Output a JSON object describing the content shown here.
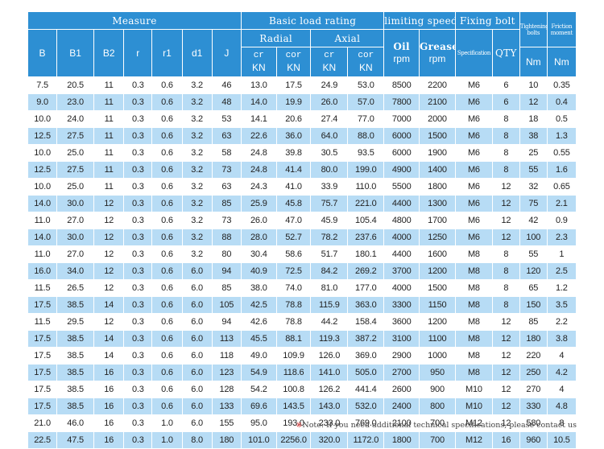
{
  "header": {
    "measure": "Measure",
    "basic_load_rating": "Basic load rating",
    "limiting_speed": "limiting speed",
    "fixing_bolt": "Fixing bolt",
    "tightening_bolts": "Tightening bolts",
    "friction_moment": "Friction moment",
    "radial": "Radial",
    "axial": "Axial",
    "oil": "Oil",
    "grease": "Grease",
    "rpm": "rpm",
    "specification": "Specification",
    "qty": "QTY",
    "nm": "Nm",
    "kn": "KN",
    "cr": "cr",
    "cor": "cor",
    "b": "B",
    "b1": "B1",
    "b2": "B2",
    "r": "r",
    "r1": "r1",
    "d1": "d1",
    "j": "J"
  },
  "rows": [
    [
      "7.5",
      "20.5",
      "11",
      "0.3",
      "0.6",
      "3.2",
      "46",
      "13.0",
      "17.5",
      "24.9",
      "53.0",
      "8500",
      "2200",
      "M6",
      "6",
      "10",
      "0.35"
    ],
    [
      "9.0",
      "23.0",
      "11",
      "0.3",
      "0.6",
      "3.2",
      "48",
      "14.0",
      "19.9",
      "26.0",
      "57.0",
      "7800",
      "2100",
      "M6",
      "6",
      "12",
      "0.4"
    ],
    [
      "10.0",
      "24.0",
      "11",
      "0.3",
      "0.6",
      "3.2",
      "53",
      "14.1",
      "20.6",
      "27.4",
      "77.0",
      "7000",
      "2000",
      "M6",
      "8",
      "18",
      "0.5"
    ],
    [
      "12.5",
      "27.5",
      "11",
      "0.3",
      "0.6",
      "3.2",
      "63",
      "22.6",
      "36.0",
      "64.0",
      "88.0",
      "6000",
      "1500",
      "M6",
      "8",
      "38",
      "1.3"
    ],
    [
      "10.0",
      "25.0",
      "11",
      "0.3",
      "0.6",
      "3.2",
      "58",
      "24.8",
      "39.8",
      "30.5",
      "93.5",
      "6000",
      "1900",
      "M6",
      "8",
      "25",
      "0.55"
    ],
    [
      "12.5",
      "27.5",
      "11",
      "0.3",
      "0.6",
      "3.2",
      "73",
      "24.8",
      "41.4",
      "80.0",
      "199.0",
      "4900",
      "1400",
      "M6",
      "8",
      "55",
      "1.6"
    ],
    [
      "10.0",
      "25.0",
      "11",
      "0.3",
      "0.6",
      "3.2",
      "63",
      "24.3",
      "41.0",
      "33.9",
      "110.0",
      "5500",
      "1800",
      "M6",
      "12",
      "32",
      "0.65"
    ],
    [
      "14.0",
      "30.0",
      "12",
      "0.3",
      "0.6",
      "3.2",
      "85",
      "25.9",
      "45.8",
      "75.7",
      "221.0",
      "4400",
      "1300",
      "M6",
      "12",
      "75",
      "2.1"
    ],
    [
      "11.0",
      "27.0",
      "12",
      "0.3",
      "0.6",
      "3.2",
      "73",
      "26.0",
      "47.0",
      "45.9",
      "105.4",
      "4800",
      "1700",
      "M6",
      "12",
      "42",
      "0.9"
    ],
    [
      "14.0",
      "30.0",
      "12",
      "0.3",
      "0.6",
      "3.2",
      "88",
      "28.0",
      "52.7",
      "78.2",
      "237.6",
      "4000",
      "1250",
      "M6",
      "12",
      "100",
      "2.3"
    ],
    [
      "11.0",
      "27.0",
      "12",
      "0.3",
      "0.6",
      "3.2",
      "80",
      "30.4",
      "58.6",
      "51.7",
      "180.1",
      "4400",
      "1600",
      "M8",
      "8",
      "55",
      "1"
    ],
    [
      "16.0",
      "34.0",
      "12",
      "0.3",
      "0.6",
      "6.0",
      "94",
      "40.9",
      "72.5",
      "84.2",
      "269.2",
      "3700",
      "1200",
      "M8",
      "8",
      "120",
      "2.5"
    ],
    [
      "11.5",
      "26.5",
      "12",
      "0.3",
      "0.6",
      "6.0",
      "85",
      "38.0",
      "74.0",
      "81.0",
      "177.0",
      "4000",
      "1500",
      "M8",
      "8",
      "65",
      "1.2"
    ],
    [
      "17.5",
      "38.5",
      "14",
      "0.3",
      "0.6",
      "6.0",
      "105",
      "42.5",
      "78.8",
      "115.9",
      "363.0",
      "3300",
      "1150",
      "M8",
      "8",
      "150",
      "3.5"
    ],
    [
      "11.5",
      "29.5",
      "12",
      "0.3",
      "0.6",
      "6.0",
      "94",
      "42.6",
      "78.8",
      "44.2",
      "158.4",
      "3600",
      "1200",
      "M8",
      "12",
      "85",
      "2.2"
    ],
    [
      "17.5",
      "38.5",
      "14",
      "0.3",
      "0.6",
      "6.0",
      "113",
      "45.5",
      "88.1",
      "119.3",
      "387.2",
      "3100",
      "1100",
      "M8",
      "12",
      "180",
      "3.8"
    ],
    [
      "17.5",
      "38.5",
      "14",
      "0.3",
      "0.6",
      "6.0",
      "118",
      "49.0",
      "109.9",
      "126.0",
      "369.0",
      "2900",
      "1000",
      "M8",
      "12",
      "220",
      "4"
    ],
    [
      "17.5",
      "38.5",
      "16",
      "0.3",
      "0.6",
      "6.0",
      "123",
      "54.9",
      "118.6",
      "141.0",
      "505.0",
      "2700",
      "950",
      "M8",
      "12",
      "250",
      "4.2"
    ],
    [
      "17.5",
      "38.5",
      "16",
      "0.3",
      "0.6",
      "6.0",
      "128",
      "54.2",
      "100.8",
      "126.2",
      "441.4",
      "2600",
      "900",
      "M10",
      "12",
      "270",
      "4"
    ],
    [
      "17.5",
      "38.5",
      "16",
      "0.3",
      "0.6",
      "6.0",
      "133",
      "69.6",
      "143.5",
      "143.0",
      "532.0",
      "2400",
      "800",
      "M10",
      "12",
      "330",
      "4.8"
    ],
    [
      "21.0",
      "46.0",
      "16",
      "0.3",
      "1.0",
      "6.0",
      "155",
      "95.0",
      "193.0",
      "233.0",
      "769.0",
      "2100",
      "700",
      "M12",
      "12",
      "580",
      "8"
    ],
    [
      "22.5",
      "47.5",
      "16",
      "0.3",
      "1.0",
      "8.0",
      "180",
      "101.0",
      "2256.0",
      "320.0",
      "1172.0",
      "1800",
      "700",
      "M12",
      "16",
      "960",
      "10.5"
    ]
  ],
  "note": {
    "mark": "※",
    "text": "Note: If you need additional technical specifications, please contact us"
  }
}
